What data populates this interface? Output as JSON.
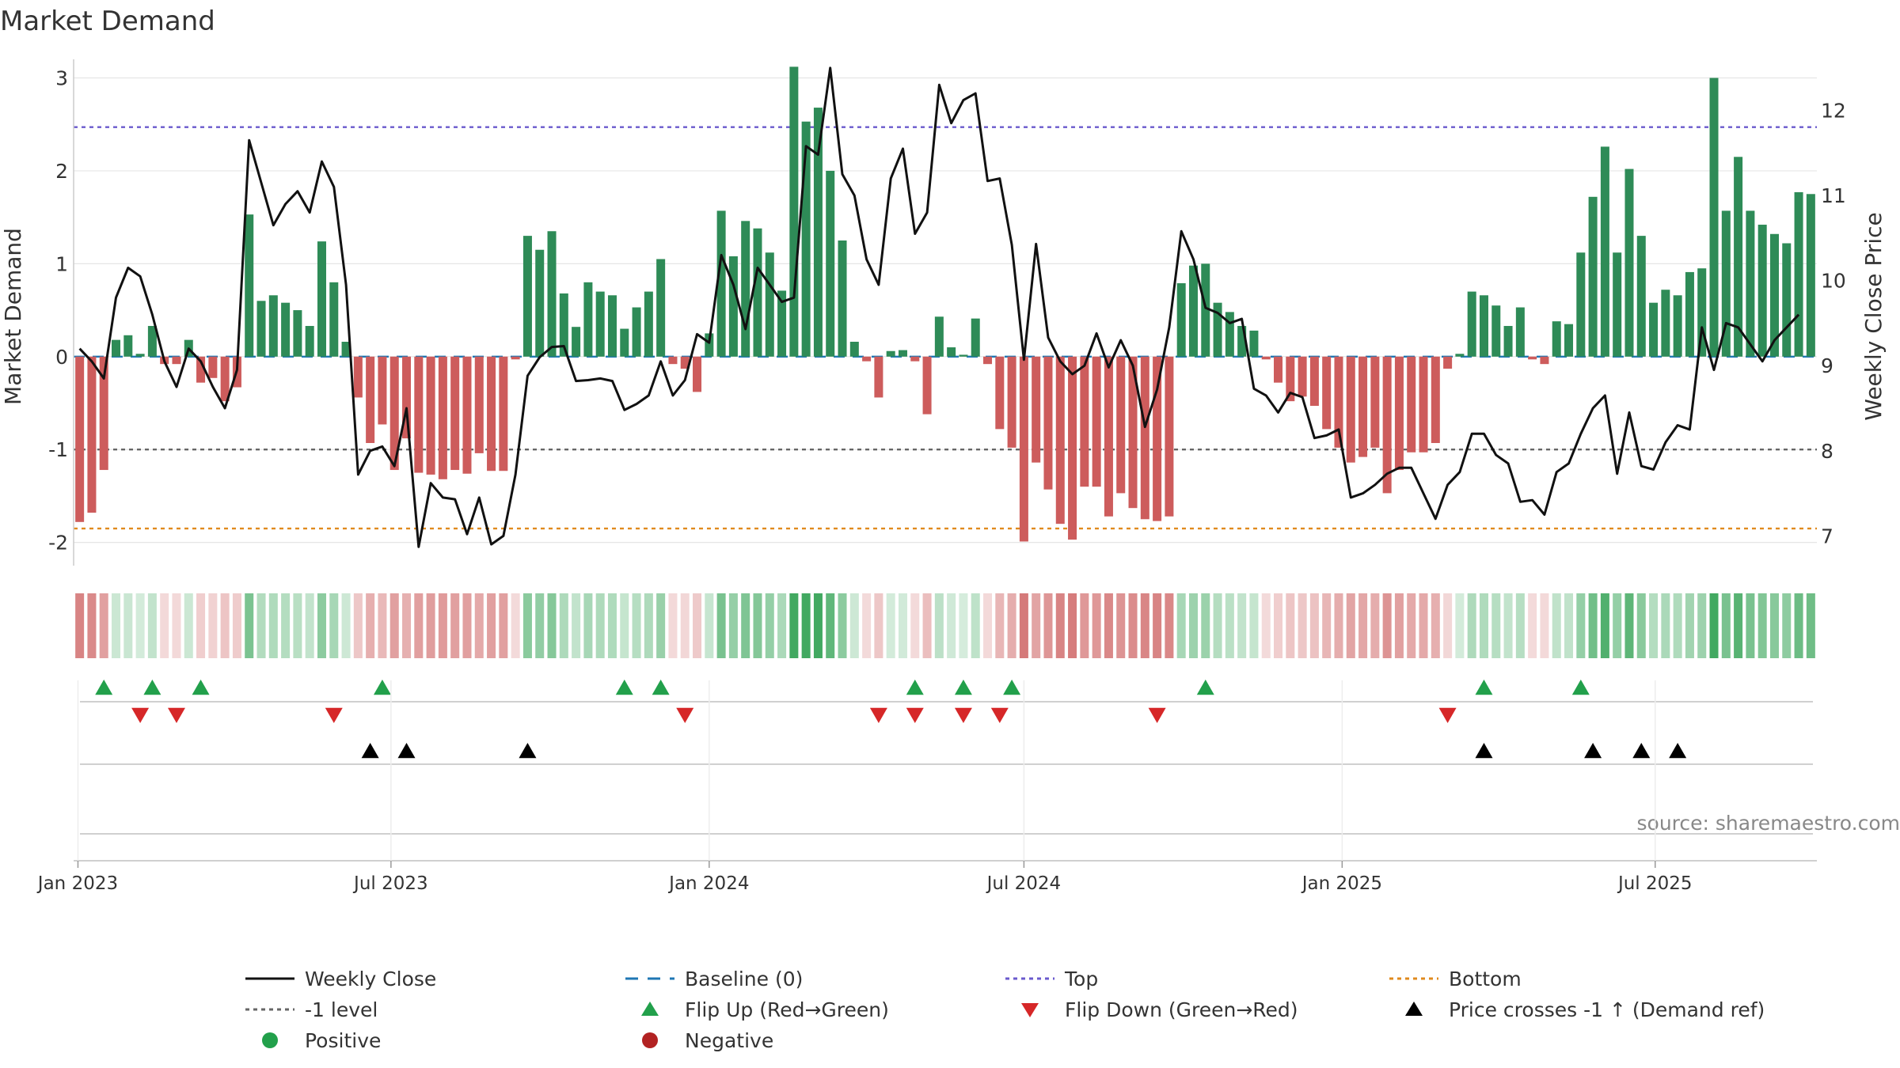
{
  "chart_data": {
    "type": "bar",
    "title": "Market Demand",
    "ylabel": "Market Demand",
    "y2label": "Weekly Close Price",
    "source": "source: sharemaestro.com",
    "ylim": [
      -2.25,
      3.2
    ],
    "y2lim": [
      6.65,
      12.6
    ],
    "left_ticks": [
      3,
      2,
      1,
      0,
      -1,
      -2
    ],
    "right_ticks": [
      12,
      11,
      10,
      9,
      8,
      7
    ],
    "x_start": "2023-01-02",
    "x_end": "2025-09-29",
    "x_ticks": [
      {
        "label": "Jan 2023",
        "date": "2023-01-01"
      },
      {
        "label": "Jul 2023",
        "date": "2023-07-01"
      },
      {
        "label": "Jan 2024",
        "date": "2024-01-01"
      },
      {
        "label": "Jul 2024",
        "date": "2024-07-01"
      },
      {
        "label": "Jan 2025",
        "date": "2025-01-01"
      },
      {
        "label": "Jul 2025",
        "date": "2025-07-01"
      }
    ],
    "reference_lines": [
      {
        "name": "Top",
        "value": 2.47,
        "color": "#6a5acd"
      },
      {
        "name": "-1 level",
        "value": -1.0,
        "color": "#666666"
      },
      {
        "name": "Bottom",
        "value": -1.85,
        "color": "#e08a1e"
      },
      {
        "name": "Baseline (0)",
        "value": 0,
        "color": "#1f77b4"
      }
    ],
    "demand": [
      -1.78,
      -1.68,
      -1.22,
      0.18,
      0.23,
      0.03,
      0.33,
      -0.08,
      -0.08,
      0.18,
      -0.28,
      -0.23,
      -0.48,
      -0.33,
      1.53,
      0.6,
      0.66,
      0.58,
      0.5,
      0.33,
      1.24,
      0.8,
      0.16,
      -0.44,
      -0.93,
      -0.73,
      -1.22,
      -0.88,
      -1.25,
      -1.27,
      -1.32,
      -1.22,
      -1.26,
      -1.04,
      -1.23,
      -1.23,
      -0.03,
      1.3,
      1.15,
      1.35,
      0.68,
      0.32,
      0.8,
      0.7,
      0.66,
      0.3,
      0.53,
      0.7,
      1.05,
      -0.08,
      -0.13,
      -0.38,
      0.25,
      1.57,
      1.08,
      1.46,
      1.38,
      1.12,
      0.71,
      3.12,
      2.53,
      2.68,
      2.0,
      1.25,
      0.16,
      -0.05,
      -0.44,
      0.06,
      0.07,
      -0.05,
      -0.62,
      0.43,
      0.1,
      0.02,
      0.41,
      -0.08,
      -0.78,
      -0.98,
      -1.99,
      -1.14,
      -1.43,
      -1.8,
      -1.97,
      -1.4,
      -1.4,
      -1.72,
      -1.47,
      -1.63,
      -1.75,
      -1.77,
      -1.72,
      0.79,
      0.98,
      1.0,
      0.58,
      0.48,
      0.33,
      0.28,
      -0.03,
      -0.28,
      -0.48,
      -0.43,
      -0.53,
      -0.78,
      -0.98,
      -1.14,
      -1.08,
      -0.98,
      -1.47,
      -1.22,
      -1.03,
      -1.03,
      -0.93,
      -0.13,
      0.03,
      0.7,
      0.66,
      0.55,
      0.33,
      0.53,
      -0.03,
      -0.08,
      0.38,
      0.35,
      1.12,
      1.72,
      2.26,
      1.12,
      2.02,
      1.3,
      0.58,
      0.72,
      0.66,
      0.91,
      0.95,
      3.0,
      1.57,
      2.15,
      1.57,
      1.42,
      1.32,
      1.22,
      1.77,
      1.75
    ],
    "weekly_close": [
      9.2,
      9.05,
      8.85,
      9.8,
      10.15,
      10.05,
      9.6,
      9.05,
      8.75,
      9.2,
      9.05,
      8.75,
      8.5,
      8.95,
      11.65,
      11.15,
      10.65,
      10.9,
      11.05,
      10.8,
      11.4,
      11.1,
      9.95,
      7.72,
      8.0,
      8.05,
      7.82,
      8.5,
      6.87,
      7.62,
      7.45,
      7.43,
      7.02,
      7.45,
      6.9,
      7.0,
      7.72,
      8.88,
      9.1,
      9.22,
      9.23,
      8.82,
      8.83,
      8.85,
      8.82,
      8.48,
      8.55,
      8.65,
      9.05,
      8.65,
      8.83,
      9.37,
      9.27,
      10.3,
      9.95,
      9.43,
      10.15,
      9.95,
      9.75,
      9.8,
      11.58,
      11.48,
      12.5,
      11.25,
      11.0,
      10.25,
      9.95,
      11.2,
      11.55,
      10.55,
      10.8,
      12.3,
      11.85,
      12.12,
      12.2,
      11.17,
      11.2,
      10.42,
      9.07,
      10.43,
      9.33,
      9.05,
      8.9,
      9.0,
      9.38,
      8.98,
      9.3,
      9.0,
      8.28,
      8.72,
      9.45,
      10.58,
      10.25,
      9.68,
      9.62,
      9.5,
      9.55,
      8.73,
      8.65,
      8.45,
      8.68,
      8.63,
      8.15,
      8.18,
      8.25,
      7.45,
      7.5,
      7.6,
      7.73,
      7.8,
      7.8,
      7.5,
      7.2,
      7.6,
      7.75,
      8.2,
      8.2,
      7.95,
      7.85,
      7.4,
      7.42,
      7.25,
      7.75,
      7.85,
      8.2,
      8.5,
      8.65,
      7.73,
      8.45,
      7.82,
      7.78,
      8.1,
      8.3,
      8.25,
      9.45,
      8.95,
      9.5,
      9.45,
      9.25,
      9.05,
      9.3,
      9.45,
      9.6
    ],
    "flip_up_weeks": [
      2,
      6,
      10,
      25,
      48,
      45,
      69,
      73,
      77,
      93,
      116,
      124
    ],
    "flip_down_weeks": [
      5,
      8,
      21,
      50,
      66,
      69,
      73,
      76,
      89,
      113
    ],
    "price_crosses_weeks": [
      24,
      27,
      37,
      116,
      125,
      129,
      132
    ],
    "legend": [
      {
        "label": "Weekly Close",
        "kind": "line",
        "color": "#111111"
      },
      {
        "label": "Baseline (0)",
        "kind": "dash",
        "color": "#1f77b4"
      },
      {
        "label": "Top",
        "kind": "dot",
        "color": "#6a5acd"
      },
      {
        "label": "Bottom",
        "kind": "dot",
        "color": "#e08a1e"
      },
      {
        "label": "-1 level",
        "kind": "dot",
        "color": "#666666"
      },
      {
        "label": "Flip Up (Red→Green)",
        "kind": "tri-up",
        "color": "#22a04b"
      },
      {
        "label": "Flip Down (Green→Red)",
        "kind": "tri-down",
        "color": "#d62728"
      },
      {
        "label": "Price crosses -1 ↑ (Demand ref)",
        "kind": "tri-up",
        "color": "#000000"
      },
      {
        "label": "Positive",
        "kind": "circle",
        "color": "#22a04b"
      },
      {
        "label": "Negative",
        "kind": "circle",
        "color": "#b22222"
      }
    ],
    "colors": {
      "positive_bar": "#2e8b57",
      "negative_bar": "#cd5c5c",
      "price_line": "#111111",
      "grid": "#e6e6e6"
    }
  }
}
